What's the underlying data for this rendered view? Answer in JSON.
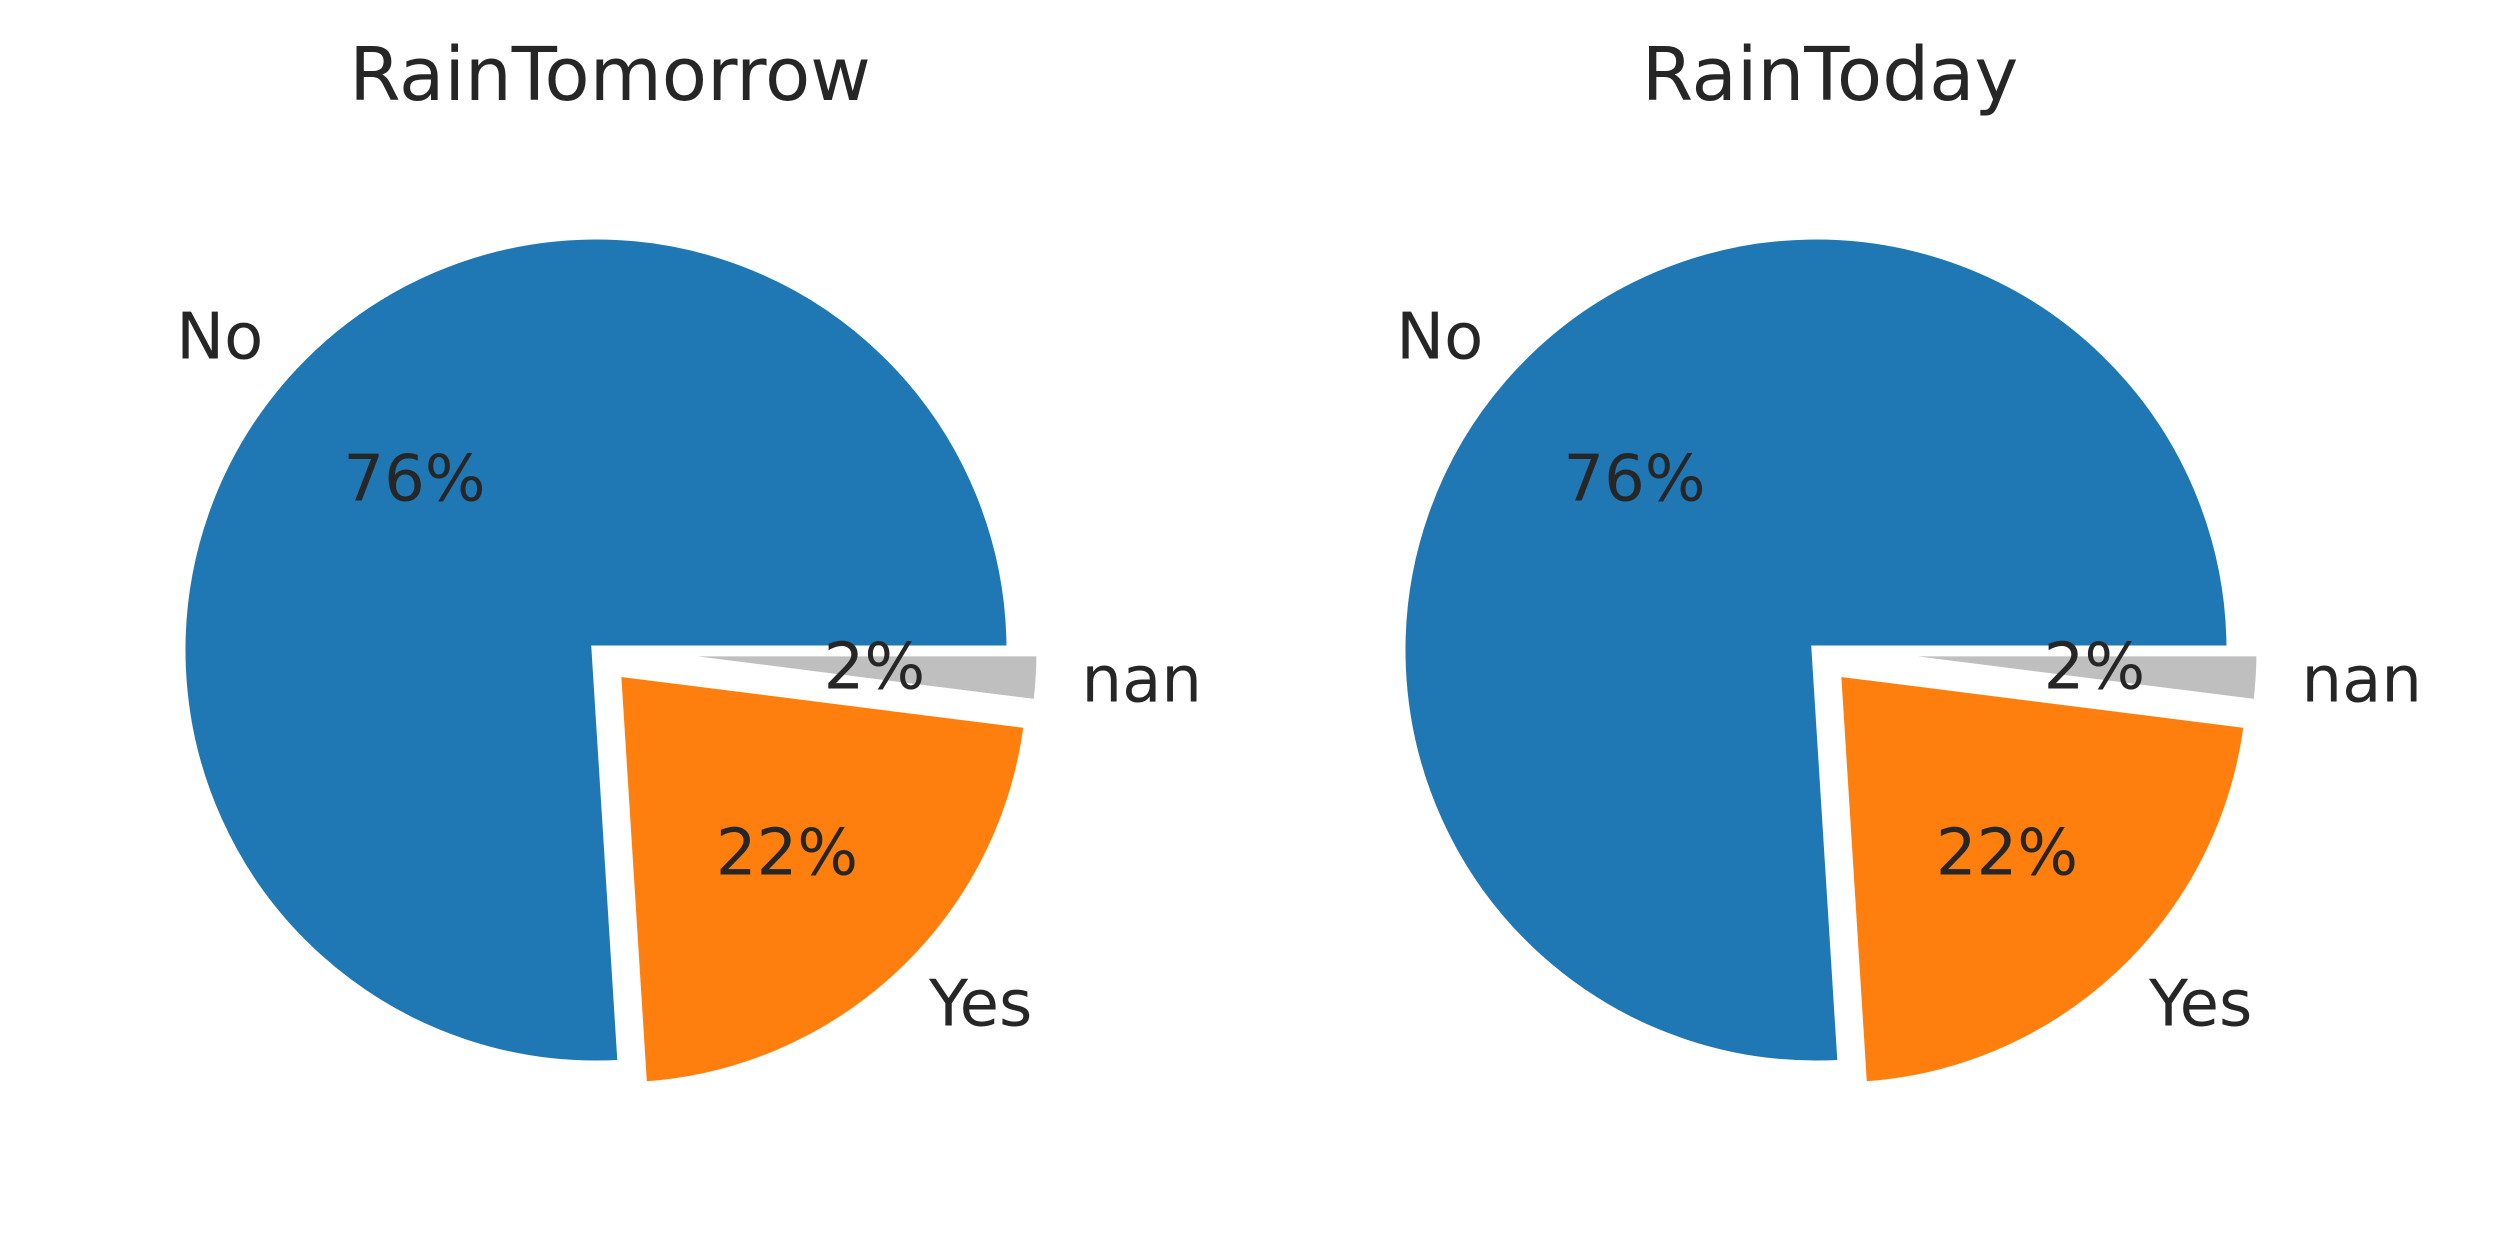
{
  "chart_data": [
    {
      "type": "pie",
      "title": "RainTomorrow",
      "slices": [
        {
          "label": "No",
          "value": 76,
          "pct_label": "76%",
          "color": "#1f77b4",
          "exploded": false
        },
        {
          "label": "Yes",
          "value": 22,
          "pct_label": "22%",
          "color": "#ff7f0e",
          "exploded": true
        },
        {
          "label": "nan",
          "value": 2,
          "pct_label": "2%",
          "color": "#bfbfbf",
          "exploded": true
        }
      ]
    },
    {
      "type": "pie",
      "title": "RainToday",
      "slices": [
        {
          "label": "No",
          "value": 76,
          "pct_label": "76%",
          "color": "#1f77b4",
          "exploded": false
        },
        {
          "label": "Yes",
          "value": 22,
          "pct_label": "22%",
          "color": "#ff7f0e",
          "exploded": true
        },
        {
          "label": "nan",
          "value": 2,
          "pct_label": "2%",
          "color": "#bfbfbf",
          "exploded": true
        }
      ]
    }
  ]
}
